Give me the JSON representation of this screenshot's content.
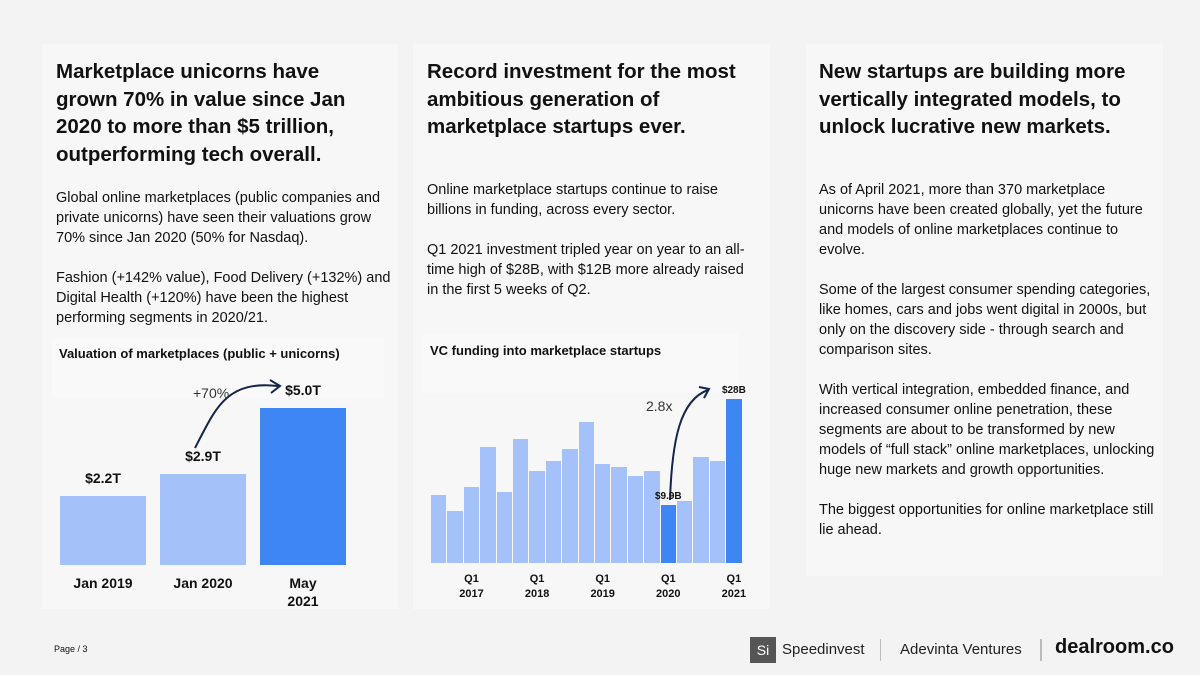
{
  "columns": [
    {
      "heading": "Marketplace unicorns have grown 70% in value since Jan 2020 to more than $5 trillion, outperforming tech overall.",
      "paragraphs": [
        "Global online marketplaces (public companies and private unicorns) have seen their valuations grow 70% since Jan 2020 (50% for Nasdaq).",
        "Fashion (+142% value), Food Delivery (+132%) and Digital Health (+120%) have been the highest performing segments in 2020/21."
      ]
    },
    {
      "heading": "Record investment for the most ambitious generation of marketplace startups ever.",
      "paragraphs": [
        "Online marketplace startups continue to raise billions in funding, across every sector.",
        "Q1 2021 investment tripled year on year to an all-time high of $28B, with $12B more already raised in the first 5 weeks of Q2."
      ]
    },
    {
      "heading": "New startups are building more vertically integrated models, to unlock lucrative new markets.",
      "paragraphs": [
        "As of April 2021, more than 370 marketplace unicorns have been created globally, yet the future and models of online marketplaces continue to evolve.",
        "Some of the largest consumer spending categories, like homes, cars and jobs went digital in 2000s, but only on the discovery side - through search and comparison sites.",
        "With vertical integration, embedded finance, and increased consumer online penetration, these segments are about to be transformed by new models of “full stack” online marketplaces, unlocking huge new markets and growth opportunities.",
        "The biggest opportunities for online marketplace still lie ahead."
      ]
    }
  ],
  "chart_data": [
    {
      "type": "bar",
      "title": "Valuation of marketplaces (public + unicorns)",
      "categories": [
        "Jan 2019",
        "Jan 2020",
        "May 2021"
      ],
      "values": [
        2.2,
        2.9,
        5.0
      ],
      "value_labels": [
        "$2.2T",
        "$2.9T",
        "$5.0T"
      ],
      "colors": [
        "#a4c2f9",
        "#a4c2f9",
        "#3f86f5"
      ],
      "annotation": "+70%"
    },
    {
      "type": "bar",
      "title": "VC funding into marketplace startups",
      "categories": [
        null,
        null,
        "Q1 2017",
        null,
        null,
        null,
        "Q1 2018",
        null,
        null,
        null,
        "Q1 2019",
        null,
        null,
        null,
        "Q1 2020",
        null,
        null,
        null,
        "Q1 2021"
      ],
      "values": [
        11.6,
        8.9,
        13,
        19.8,
        12.1,
        21.2,
        15.7,
        17.4,
        19.5,
        24,
        16.9,
        16.4,
        14.8,
        15.7,
        9.9,
        10.6,
        18.1,
        17.4,
        28
      ],
      "value_labels": [
        null,
        null,
        null,
        null,
        null,
        null,
        null,
        null,
        null,
        null,
        null,
        null,
        null,
        null,
        "$9.9B",
        null,
        null,
        null,
        "$28B"
      ],
      "colors": [
        "#a4c2f9",
        "#a4c2f9",
        "#a4c2f9",
        "#a4c2f9",
        "#a4c2f9",
        "#a4c2f9",
        "#a4c2f9",
        "#a4c2f9",
        "#a4c2f9",
        "#a4c2f9",
        "#a4c2f9",
        "#a4c2f9",
        "#a4c2f9",
        "#a4c2f9",
        "#3f86f5",
        "#a4c2f9",
        "#a4c2f9",
        "#a4c2f9",
        "#3f86f5"
      ],
      "annotation": "2.8x"
    }
  ],
  "footer": {
    "page": "Page / 3",
    "logos": [
      "Si",
      "Speedinvest",
      "Adevinta Ventures",
      "dealroom.co"
    ]
  }
}
